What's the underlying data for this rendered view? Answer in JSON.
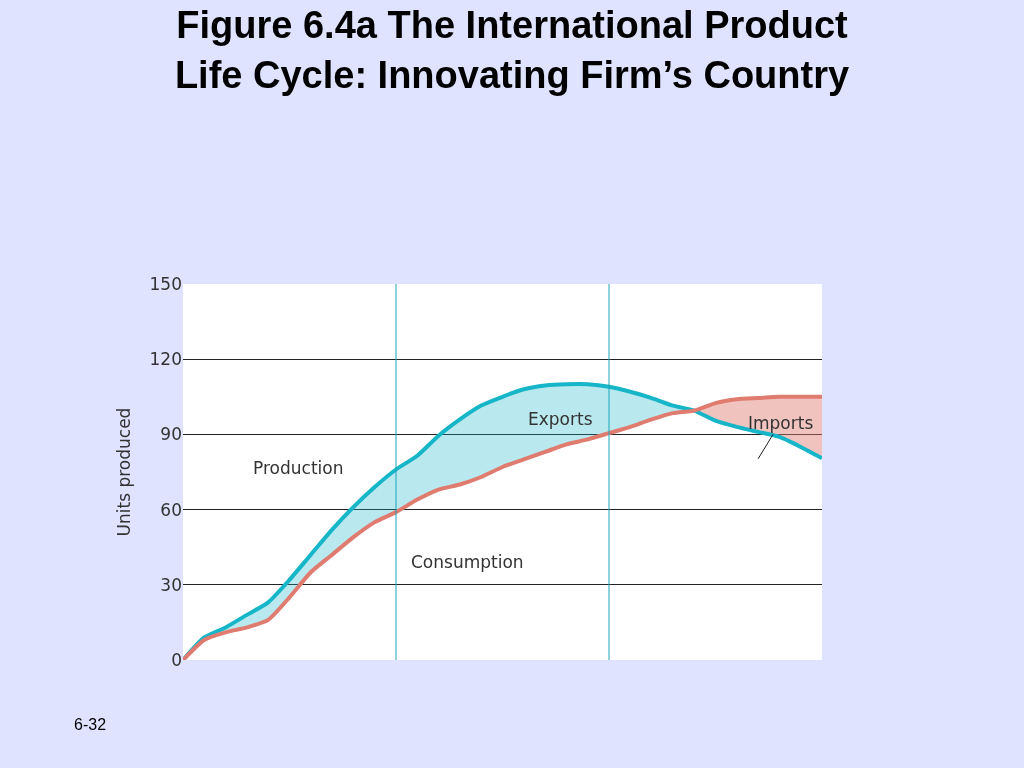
{
  "chart_data": {
    "type": "line",
    "title": "Figure 6.4a The International Product Life Cycle: Innovating Firm’s Country",
    "ylabel": "Units produced",
    "categories": [
      null,
      null,
      null,
      null,
      null,
      null,
      null,
      null,
      null,
      null,
      null,
      null,
      null,
      null,
      null,
      null,
      null,
      null,
      null,
      null,
      null,
      null,
      null,
      null,
      null,
      null,
      null,
      null,
      null,
      null,
      null
    ],
    "series": [
      {
        "name": "Production",
        "color": "#16b6c8",
        "values": [
          0,
          9,
          13,
          18,
          23,
          32,
          42,
          52,
          61,
          69,
          76,
          81.5,
          89.5,
          96,
          101.5,
          105,
          108,
          109.5,
          110,
          110,
          109,
          107,
          104.5,
          101.5,
          99.5,
          95.5,
          93,
          91,
          89,
          85,
          80.5
        ],
        "lower": [
          null,
          8,
          11,
          13,
          16,
          25,
          35,
          42,
          49,
          55,
          59,
          64,
          68,
          70,
          73,
          77,
          80,
          83,
          86,
          88,
          90.5,
          93,
          96,
          98.5,
          99.5,
          null,
          null,
          null,
          null,
          null,
          null
        ],
        "upper": [
          null,
          9,
          13,
          18,
          23,
          32,
          42,
          52,
          61,
          69,
          76,
          81.5,
          89.5,
          96,
          101.5,
          105,
          108,
          109.5,
          110,
          110,
          109,
          107,
          104.5,
          101.5,
          99.5,
          null,
          null,
          null,
          null,
          null,
          null
        ]
      },
      {
        "name": "Consumption",
        "color": "#e07b70",
        "values": [
          0,
          8,
          11,
          13,
          16,
          25,
          35,
          42,
          49,
          55,
          59,
          64,
          68,
          70,
          73,
          77,
          80,
          83,
          86,
          88,
          90.5,
          93,
          96,
          98.5,
          99.5,
          102.5,
          104,
          104.5,
          105,
          105,
          105
        ],
        "lower": [
          null,
          null,
          null,
          null,
          null,
          null,
          null,
          null,
          null,
          null,
          null,
          null,
          null,
          null,
          null,
          null,
          null,
          null,
          null,
          null,
          null,
          null,
          null,
          null,
          99.5,
          95.5,
          93,
          91,
          89,
          85,
          80.5
        ],
        "upper": [
          null,
          null,
          null,
          null,
          null,
          null,
          null,
          null,
          null,
          null,
          null,
          null,
          null,
          null,
          null,
          null,
          null,
          null,
          null,
          null,
          null,
          null,
          null,
          null,
          99.5,
          102.5,
          104,
          104.5,
          105,
          105,
          105
        ]
      }
    ],
    "ylim": [
      0,
      150
    ],
    "yticks": [
      0,
      30,
      60,
      90,
      120,
      150
    ],
    "grid": "y",
    "tick_labels": "y",
    "legend": false,
    "annotations": [
      "Exports",
      "Imports",
      "6-32"
    ]
  }
}
